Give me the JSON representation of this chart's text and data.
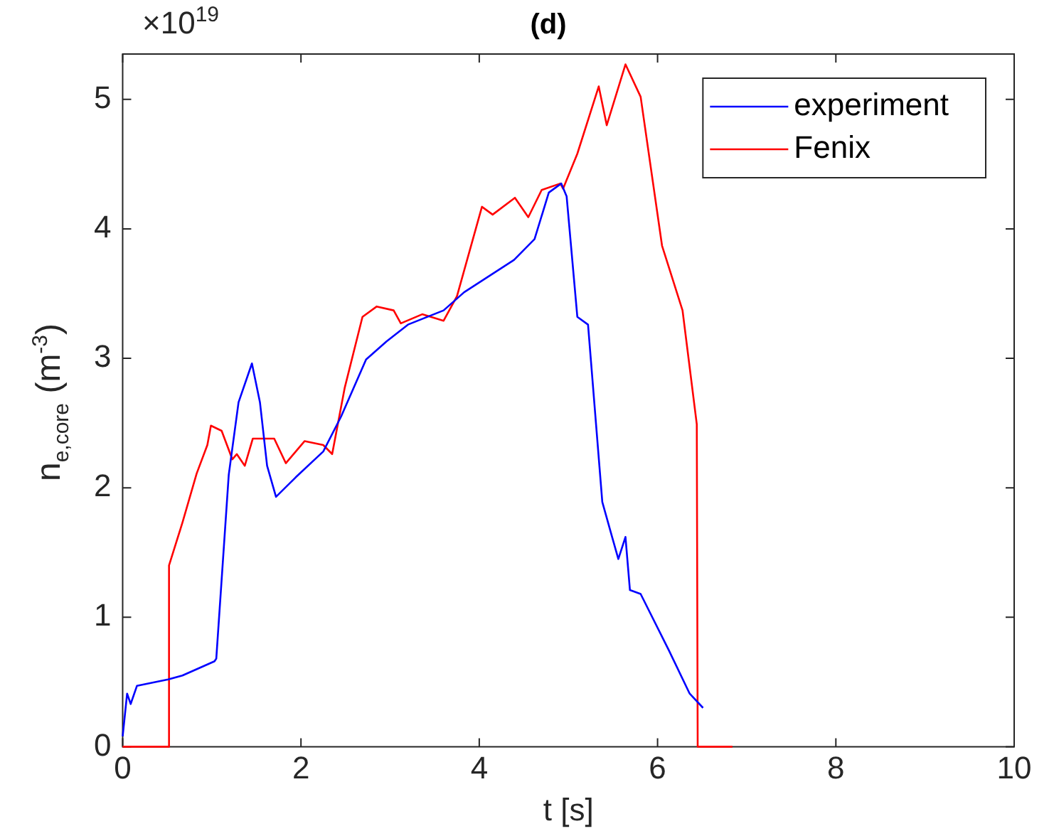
{
  "chart_data": {
    "type": "line",
    "title": "(d)",
    "xlabel": "t [s]",
    "ylabel": "n$_{e,core}$  (m$^{-3}$)",
    "annotations": [
      "×10$^{19}$"
    ],
    "xlim": [
      0,
      10
    ],
    "xticks": [
      0,
      2,
      4,
      6,
      8,
      10
    ],
    "ylim": [
      0,
      5.35
    ],
    "yticks": [
      0,
      1,
      2,
      3,
      4,
      5
    ],
    "grid": false,
    "legend": "top right",
    "marker": "none",
    "line_style": "solid",
    "series": [
      {
        "name": "experiment",
        "color": "#0000ff",
        "x": [
          0,
          0.05,
          0.09,
          0.16,
          0.51,
          0.67,
          1.03,
          1.05,
          1.19,
          1.3,
          1.45,
          1.54,
          1.62,
          1.72,
          1.94,
          2.25,
          2.45,
          2.73,
          2.96,
          3.2,
          3.6,
          3.83,
          4.39,
          4.62,
          4.78,
          4.92,
          4.98,
          5.1,
          5.22,
          5.38,
          5.49,
          5.56,
          5.64,
          5.69,
          5.81,
          6.13,
          6.36,
          6.51
        ],
        "values": [
          0.08,
          0.41,
          0.33,
          0.47,
          0.52,
          0.55,
          0.66,
          0.68,
          2.1,
          2.66,
          2.96,
          2.66,
          2.17,
          1.93,
          2.08,
          2.28,
          2.55,
          2.99,
          3.13,
          3.26,
          3.37,
          3.51,
          3.76,
          3.92,
          4.28,
          4.35,
          4.25,
          3.32,
          3.26,
          1.89,
          1.62,
          1.45,
          1.62,
          1.21,
          1.18,
          0.74,
          0.41,
          0.3
        ]
      },
      {
        "name": "Fenix",
        "color": "#ff0000",
        "x": [
          0,
          0.52,
          0.52,
          0.67,
          0.83,
          0.95,
          0.99,
          1.11,
          1.23,
          1.28,
          1.37,
          1.46,
          1.7,
          1.83,
          2.04,
          2.25,
          2.35,
          2.49,
          2.69,
          2.85,
          3.04,
          3.12,
          3.36,
          3.6,
          3.75,
          4.03,
          4.15,
          4.4,
          4.55,
          4.7,
          4.91,
          4.94,
          5.1,
          5.34,
          5.43,
          5.64,
          5.81,
          6.05,
          6.28,
          6.44,
          6.45,
          6.84
        ],
        "values": [
          0,
          0,
          1.4,
          1.73,
          2.11,
          2.33,
          2.48,
          2.44,
          2.22,
          2.26,
          2.17,
          2.38,
          2.38,
          2.19,
          2.36,
          2.33,
          2.26,
          2.77,
          3.32,
          3.4,
          3.37,
          3.27,
          3.34,
          3.29,
          3.48,
          4.17,
          4.11,
          4.24,
          4.09,
          4.3,
          4.35,
          4.31,
          4.58,
          5.1,
          4.8,
          5.27,
          5.02,
          3.87,
          3.37,
          2.49,
          0,
          0
        ]
      }
    ]
  }
}
